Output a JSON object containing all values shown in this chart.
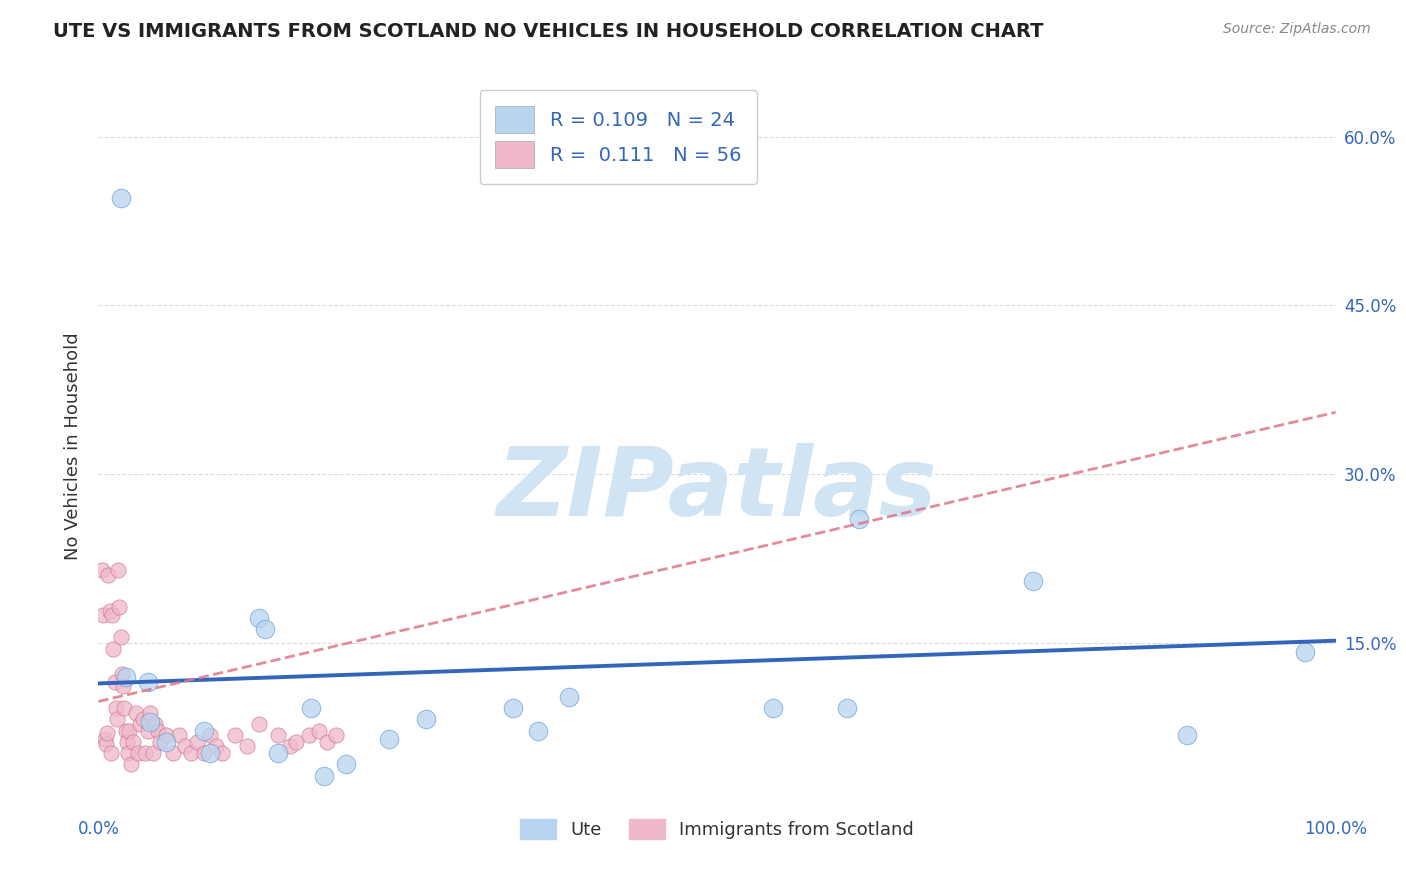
{
  "title": "UTE VS IMMIGRANTS FROM SCOTLAND NO VEHICLES IN HOUSEHOLD CORRELATION CHART",
  "source": "Source: ZipAtlas.com",
  "ylabel": "No Vehicles in Household",
  "watermark": "ZIPatlas",
  "xlim": [
    0.0,
    1.0
  ],
  "ylim": [
    0.0,
    0.65
  ],
  "xticks": [
    0.0,
    0.25,
    0.5,
    0.75,
    1.0
  ],
  "xtick_labels": [
    "0.0%",
    "",
    "",
    "",
    "100.0%"
  ],
  "ytick_positions": [
    0.15,
    0.3,
    0.45,
    0.6
  ],
  "ytick_labels": [
    "15.0%",
    "30.0%",
    "45.0%",
    "60.0%"
  ],
  "legend_r_ute": "0.109",
  "legend_n_ute": "24",
  "legend_r_scot": "0.111",
  "legend_n_scot": "56",
  "ute_color": "#b8d4f0",
  "scot_color": "#f0b8cc",
  "ute_edge_color": "#6699cc",
  "scot_edge_color": "#cc7788",
  "ute_line_color": "#3366bb",
  "scot_line_color": "#dd7788",
  "background_color": "#ffffff",
  "grid_color": "#cccccc",
  "title_color": "#222222",
  "source_color": "#888888",
  "watermark_color": "#d0e4f4",
  "ute_x": [
    0.018,
    0.022,
    0.04,
    0.042,
    0.055,
    0.085,
    0.09,
    0.13,
    0.135,
    0.145,
    0.172,
    0.182,
    0.2,
    0.235,
    0.265,
    0.335,
    0.355,
    0.38,
    0.545,
    0.605,
    0.615,
    0.755,
    0.88,
    0.975
  ],
  "ute_y": [
    0.545,
    0.12,
    0.115,
    0.08,
    0.062,
    0.072,
    0.052,
    0.172,
    0.162,
    0.052,
    0.092,
    0.032,
    0.042,
    0.065,
    0.082,
    0.092,
    0.072,
    0.102,
    0.092,
    0.092,
    0.26,
    0.205,
    0.068,
    0.142
  ],
  "scot_x": [
    0.003,
    0.004,
    0.005,
    0.006,
    0.007,
    0.008,
    0.009,
    0.01,
    0.011,
    0.012,
    0.013,
    0.014,
    0.015,
    0.016,
    0.017,
    0.018,
    0.019,
    0.02,
    0.021,
    0.022,
    0.023,
    0.024,
    0.025,
    0.026,
    0.028,
    0.03,
    0.032,
    0.034,
    0.036,
    0.038,
    0.04,
    0.042,
    0.044,
    0.046,
    0.048,
    0.05,
    0.055,
    0.06,
    0.065,
    0.07,
    0.075,
    0.08,
    0.085,
    0.09,
    0.095,
    0.1,
    0.11,
    0.12,
    0.13,
    0.145,
    0.155,
    0.16,
    0.17,
    0.178,
    0.185,
    0.192
  ],
  "scot_y": [
    0.215,
    0.175,
    0.065,
    0.06,
    0.07,
    0.21,
    0.178,
    0.052,
    0.175,
    0.145,
    0.115,
    0.092,
    0.082,
    0.215,
    0.182,
    0.155,
    0.122,
    0.112,
    0.092,
    0.072,
    0.062,
    0.052,
    0.072,
    0.042,
    0.062,
    0.088,
    0.052,
    0.078,
    0.082,
    0.052,
    0.072,
    0.088,
    0.052,
    0.078,
    0.072,
    0.062,
    0.068,
    0.052,
    0.068,
    0.058,
    0.052,
    0.062,
    0.052,
    0.068,
    0.058,
    0.052,
    0.068,
    0.058,
    0.078,
    0.068,
    0.058,
    0.062,
    0.068,
    0.072,
    0.062,
    0.068
  ],
  "ute_marker_size": 180,
  "scot_marker_size": 120,
  "ute_line_start_x": 0.0,
  "ute_line_start_y": 0.114,
  "ute_line_end_x": 1.0,
  "ute_line_end_y": 0.152,
  "scot_line_start_x": 0.0,
  "scot_line_start_y": 0.098,
  "scot_line_end_x": 1.0,
  "scot_line_end_y": 0.355
}
